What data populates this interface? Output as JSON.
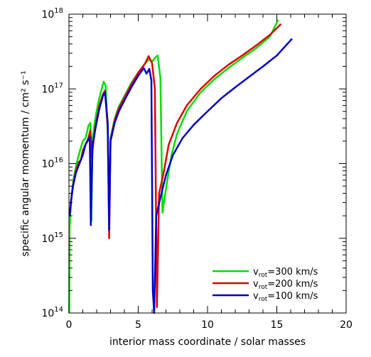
{
  "chart_data": {
    "type": "line",
    "title": "",
    "xlabel": "interior mass coordinate / solar masses",
    "ylabel": "specific angular momentum / cm² s⁻¹",
    "xlim": [
      0,
      20
    ],
    "ylim": [
      100000000000000.0,
      1e+18
    ],
    "yscale": "log",
    "x_ticks": [
      0,
      5,
      10,
      15,
      20
    ],
    "y_ticks": [
      {
        "value": 100000000000000.0,
        "base": "10",
        "exp": "14"
      },
      {
        "value": 1000000000000000.0,
        "base": "10",
        "exp": "15"
      },
      {
        "value": 1e+16,
        "base": "10",
        "exp": "16"
      },
      {
        "value": 1e+17,
        "base": "10",
        "exp": "17"
      },
      {
        "value": 1e+18,
        "base": "10",
        "exp": "18"
      }
    ],
    "grid": false,
    "legend_position": "bottom-right",
    "series": [
      {
        "name": "v_rot=300 km/s",
        "legend_base": "v",
        "legend_sub": "rot",
        "legend_rest": "=300 km/s",
        "color": "#00e000",
        "points": [
          [
            0.02,
            100000000000000.0
          ],
          [
            0.04,
            1300000000000000.0
          ],
          [
            0.1,
            2200000000000000.0
          ],
          [
            0.2,
            4000000000000000.0
          ],
          [
            0.35,
            6500000000000000.0
          ],
          [
            0.55,
            1e+16
          ],
          [
            0.8,
            1.5e+16
          ],
          [
            1.0,
            2e+16
          ],
          [
            1.2,
            2.2e+16
          ],
          [
            1.3,
            2.6e+16
          ],
          [
            1.4,
            3.2e+16
          ],
          [
            1.55,
            3.5e+16
          ],
          [
            1.62,
            1700000000000000.0
          ],
          [
            1.7,
            2.2e+16
          ],
          [
            1.9,
            4e+16
          ],
          [
            2.1,
            6.3e+16
          ],
          [
            2.3,
            9e+16
          ],
          [
            2.5,
            1.25e+17
          ],
          [
            2.65,
            1.1e+17
          ],
          [
            2.8,
            2.6e+16
          ],
          [
            2.9,
            1400000000000000.0
          ],
          [
            3.0,
            2.2e+16
          ],
          [
            3.3,
            4e+16
          ],
          [
            3.6,
            5.8e+16
          ],
          [
            4.0,
            8e+16
          ],
          [
            4.5,
            1.2e+17
          ],
          [
            5.0,
            1.65e+17
          ],
          [
            5.5,
            2.2e+17
          ],
          [
            5.8,
            2.5e+17
          ],
          [
            6.0,
            2.3e+17
          ],
          [
            6.2,
            2.6e+17
          ],
          [
            6.4,
            2.8e+17
          ],
          [
            6.6,
            1.4e+17
          ],
          [
            6.75,
            2200000000000000.0
          ],
          [
            6.9,
            3500000000000000.0
          ],
          [
            7.1,
            6000000000000000.0
          ],
          [
            7.4,
            1.3e+16
          ],
          [
            7.8,
            2.5e+16
          ],
          [
            8.5,
            5e+16
          ],
          [
            9.5,
            9e+16
          ],
          [
            10.5,
            1.35e+17
          ],
          [
            11.5,
            1.9e+17
          ],
          [
            12.5,
            2.6e+17
          ],
          [
            13.5,
            3.5e+17
          ],
          [
            14.5,
            5e+17
          ],
          [
            15.1,
            8.4e+17
          ]
        ]
      },
      {
        "name": "v_rot=200 km/s",
        "legend_base": "v",
        "legend_sub": "rot",
        "legend_rest": "=200 km/s",
        "color": "#e00000",
        "points": [
          [
            0.05,
            2000000000000000.0
          ],
          [
            0.15,
            3000000000000000.0
          ],
          [
            0.3,
            5200000000000000.0
          ],
          [
            0.5,
            8000000000000000.0
          ],
          [
            0.7,
            1.05e+16
          ],
          [
            0.85,
            1.1e+16
          ],
          [
            1.0,
            1.5e+16
          ],
          [
            1.2,
            1.8e+16
          ],
          [
            1.4,
            2.2e+16
          ],
          [
            1.55,
            2.8e+16
          ],
          [
            1.65,
            1.2e+16
          ],
          [
            1.75,
            1.8e+16
          ],
          [
            1.95,
            3.5e+16
          ],
          [
            2.2,
            6e+16
          ],
          [
            2.45,
            8.5e+16
          ],
          [
            2.6,
            9.5e+16
          ],
          [
            2.8,
            3e+16
          ],
          [
            2.9,
            1000000000000000.0
          ],
          [
            3.0,
            2e+16
          ],
          [
            3.3,
            3.8e+16
          ],
          [
            3.6,
            5.5e+16
          ],
          [
            4.0,
            7.6e+16
          ],
          [
            4.5,
            1.15e+17
          ],
          [
            5.0,
            1.65e+17
          ],
          [
            5.5,
            2.2e+17
          ],
          [
            5.75,
            2.75e+17
          ],
          [
            5.9,
            2.4e+17
          ],
          [
            6.0,
            2.2e+17
          ],
          [
            6.2,
            1e+17
          ],
          [
            6.35,
            120000000000000.0
          ],
          [
            6.5,
            4000000000000000.0
          ],
          [
            6.8,
            7000000000000000.0
          ],
          [
            7.2,
            1.8e+16
          ],
          [
            7.8,
            3.5e+16
          ],
          [
            8.5,
            6e+16
          ],
          [
            9.5,
            1e+17
          ],
          [
            10.5,
            1.5e+17
          ],
          [
            11.5,
            2.1e+17
          ],
          [
            12.5,
            2.8e+17
          ],
          [
            13.5,
            3.8e+17
          ],
          [
            14.5,
            5.3e+17
          ],
          [
            15.3,
            7.4e+17
          ]
        ]
      },
      {
        "name": "v_rot=100 km/s",
        "legend_base": "v",
        "legend_sub": "rot",
        "legend_rest": "=100 km/s",
        "color": "#0000c8",
        "points": [
          [
            0.05,
            2000000000000000.0
          ],
          [
            0.15,
            3200000000000000.0
          ],
          [
            0.3,
            5000000000000000.0
          ],
          [
            0.5,
            7500000000000000.0
          ],
          [
            0.8,
            1.05e+16
          ],
          [
            1.0,
            1.3e+16
          ],
          [
            1.2,
            1.8e+16
          ],
          [
            1.35,
            2e+16
          ],
          [
            1.5,
            2.3e+16
          ],
          [
            1.58,
            1500000000000000.0
          ],
          [
            1.7,
            1.8e+16
          ],
          [
            1.95,
            3.2e+16
          ],
          [
            2.2,
            5.5e+16
          ],
          [
            2.45,
            8e+16
          ],
          [
            2.6,
            9e+16
          ],
          [
            2.8,
            3.5e+16
          ],
          [
            2.9,
            1300000000000000.0
          ],
          [
            3.0,
            2e+16
          ],
          [
            3.3,
            3.5e+16
          ],
          [
            3.6,
            5e+16
          ],
          [
            4.0,
            7e+16
          ],
          [
            4.5,
            1.05e+17
          ],
          [
            5.0,
            1.5e+17
          ],
          [
            5.4,
            1.9e+17
          ],
          [
            5.6,
            1.6e+17
          ],
          [
            5.8,
            1.85e+17
          ],
          [
            5.95,
            1.3e+17
          ],
          [
            6.05,
            200000000000000.0
          ],
          [
            6.15,
            100000000000000.0
          ],
          [
            6.3,
            2000000000000000.0
          ],
          [
            6.6,
            3500000000000000.0
          ],
          [
            7.0,
            7000000000000000.0
          ],
          [
            7.5,
            1.3e+16
          ],
          [
            8.2,
            2.2e+16
          ],
          [
            9.0,
            3.3e+16
          ],
          [
            10.0,
            5e+16
          ],
          [
            11.0,
            7.5e+16
          ],
          [
            12.0,
            1.05e+17
          ],
          [
            13.0,
            1.45e+17
          ],
          [
            14.0,
            2e+17
          ],
          [
            15.0,
            2.8e+17
          ],
          [
            16.1,
            4.7e+17
          ]
        ]
      }
    ]
  }
}
